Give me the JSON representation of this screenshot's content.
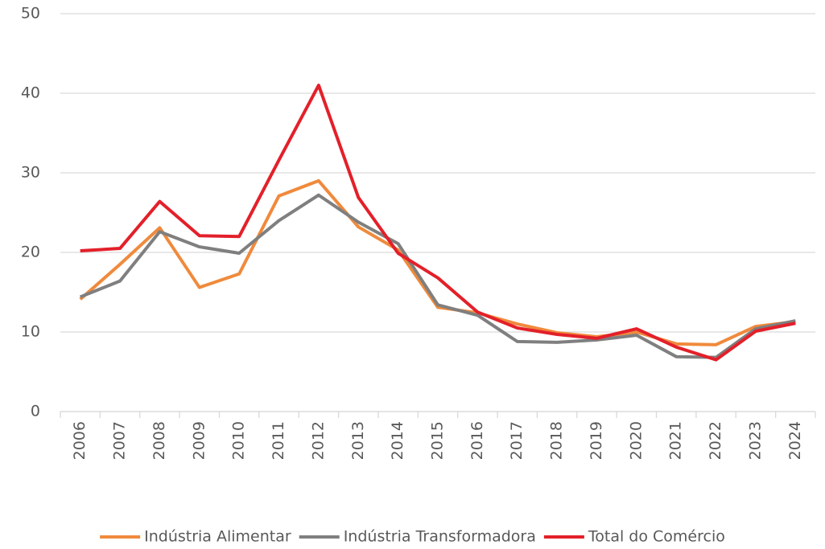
{
  "chart_data": {
    "type": "line",
    "categories": [
      "2006",
      "2007",
      "2008",
      "2009",
      "2010",
      "2011",
      "2012",
      "2013",
      "2014",
      "2015",
      "2016",
      "2017",
      "2018",
      "2019",
      "2020",
      "2021",
      "2022",
      "2023",
      "2024"
    ],
    "series": [
      {
        "name": "Indústria Alimentar",
        "color": "#f08a3c",
        "values": [
          14.1,
          18.5,
          23.1,
          15.6,
          17.3,
          27.1,
          29.0,
          23.2,
          20.3,
          13.1,
          12.4,
          11.0,
          9.9,
          9.4,
          10.0,
          8.5,
          8.4,
          10.7,
          11.3
        ]
      },
      {
        "name": "Indústria Transformadora",
        "color": "#7f7f7f",
        "values": [
          14.4,
          16.4,
          22.6,
          20.7,
          19.9,
          24.0,
          27.2,
          23.8,
          21.1,
          13.4,
          12.1,
          8.8,
          8.7,
          9.0,
          9.6,
          6.9,
          6.8,
          10.4,
          11.4
        ]
      },
      {
        "name": "Total do Comércio",
        "color": "#e3202a",
        "values": [
          20.2,
          20.5,
          26.4,
          22.1,
          22.0,
          31.6,
          41.0,
          26.9,
          19.9,
          16.8,
          12.5,
          10.5,
          9.7,
          9.2,
          10.4,
          8.1,
          6.5,
          10.1,
          11.1
        ]
      }
    ],
    "ylim": [
      0,
      50
    ],
    "yticks": [
      0,
      10,
      20,
      30,
      40,
      50
    ],
    "grid": true,
    "legend": "bottom"
  }
}
